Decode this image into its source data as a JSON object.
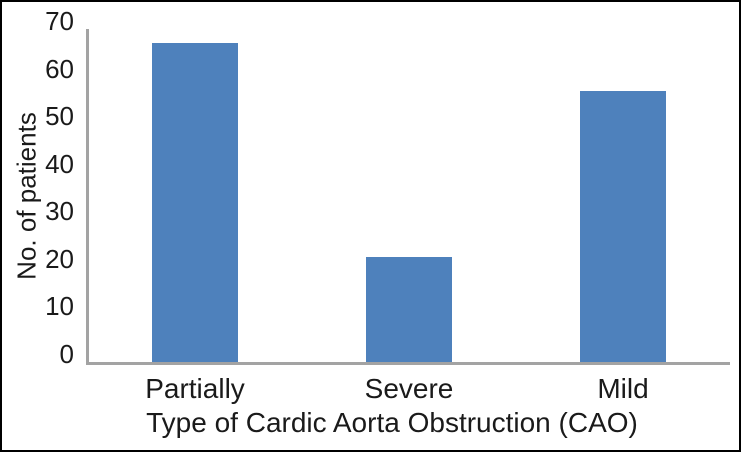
{
  "chart_data": {
    "type": "bar",
    "title": "",
    "categories": [
      "Partially",
      "Severe",
      "Mild"
    ],
    "values": [
      67,
      22,
      57
    ],
    "xlabel": "Type of Cardic Aorta Obstruction (CAO)",
    "ylabel": "No. of patients",
    "ylim": [
      0,
      70
    ],
    "ytick_step": 10,
    "yticks": [
      0,
      10,
      20,
      30,
      40,
      50,
      60,
      70
    ],
    "grid": false,
    "legend_position": "none",
    "bar_color": "#4E81BC",
    "axis_line_color": "#A3A3A3",
    "text_color": "#1A1A1A",
    "frame_color": "#000000"
  }
}
